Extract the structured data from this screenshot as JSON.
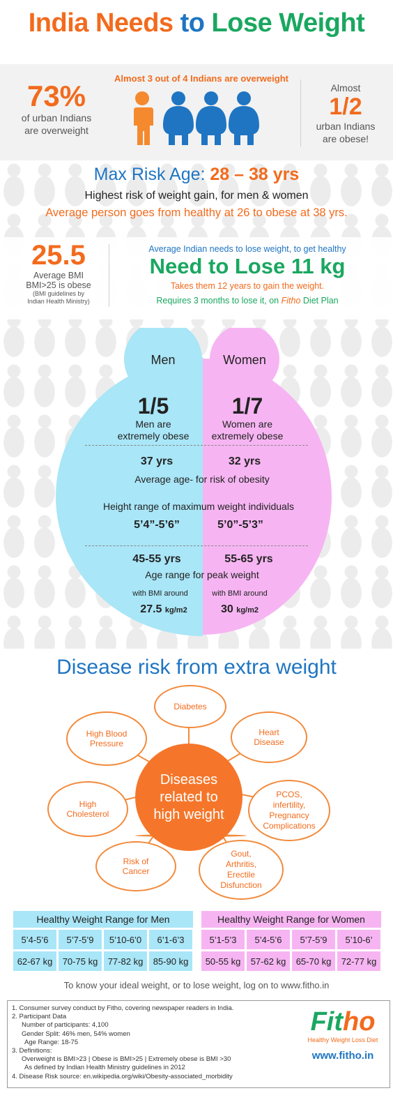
{
  "title": {
    "part1": "India Needs",
    "part2": "to",
    "part3": "Lose Weight"
  },
  "stat_top": {
    "pct": "73%",
    "pct_text1": "of  urban Indians",
    "pct_text2": "are  overweight",
    "headline": "Almost 3 out of 4 Indians are overweight",
    "right_pre": "Almost",
    "right_frac": "1/2",
    "right_text1": "urban Indians",
    "right_text2": "are  obese!"
  },
  "risk": {
    "label": "Max Risk Age:",
    "value": "28 – 38 yrs",
    "line1": "Highest risk of weight gain, for men & women",
    "line2": "Average person goes from healthy at 26 to obese at 38 yrs."
  },
  "bmi": {
    "value": "25.5",
    "text1": "Average BMI",
    "text2": "BMI>25 is obese",
    "note1": "(BMI guidelines by",
    "note2": "Indian Health Ministry)"
  },
  "lose": {
    "intro": "Average Indian needs to lose weight, to get healthy",
    "headline": "Need to Lose 11 kg",
    "gain": "Takes them 12 years to gain the weight.",
    "req_pre": "Requires 3 months to lose it, on",
    "req_brand": "Fitho",
    "req_post": "Diet Plan"
  },
  "compare": {
    "men_label": "Men",
    "women_label": "Women",
    "men_frac": "1/5",
    "men_frac_text1": "Men are",
    "men_frac_text2": "extremely obese",
    "women_frac": "1/7",
    "women_frac_text1": "Women are",
    "women_frac_text2": "extremely obese",
    "men_age": "37 yrs",
    "women_age": "32 yrs",
    "age_caption": "Average age- for risk of obesity",
    "height_caption": "Height range of maximum weight individuals",
    "men_height": "5’4”-5’6”",
    "women_height": "5’0”-5’3”",
    "men_peak": "45-55 yrs",
    "women_peak": "55-65 yrs",
    "peak_caption": "Age range for peak weight",
    "bmi_around": "with BMI around",
    "men_bmi": "27.5",
    "women_bmi": "30",
    "bmi_unit": "kg/m2"
  },
  "disease": {
    "title": "Disease risk from extra weight",
    "center": [
      "Diseases",
      "related to",
      "high weight"
    ],
    "items": [
      [
        "Diabetes"
      ],
      [
        "Heart",
        "Disease"
      ],
      [
        "PCOS,",
        "infertility,",
        "Pregnancy",
        "Complications"
      ],
      [
        "Gout,",
        "Arthritis,",
        "Erectile",
        "Disfunction"
      ],
      [
        "Risk of",
        "Cancer"
      ],
      [
        "High",
        "Cholesterol"
      ],
      [
        "High Blood",
        "Pressure"
      ]
    ]
  },
  "weights": {
    "men_title": "Healthy Weight Range for Men",
    "men_heights": [
      "5’4-5’6",
      "5’7-5’9",
      "5’10-6’0",
      "6’1-6’3"
    ],
    "men_kg": [
      "62-67 kg",
      "70-75 kg",
      "77-82 kg",
      "85-90 kg"
    ],
    "women_title": "Healthy Weight Range for Women",
    "women_heights": [
      "5’1-5’3",
      "5’4-5’6",
      "5’7-5’9",
      "5’10-6’"
    ],
    "women_kg": [
      "50-55 kg",
      "57-62 kg",
      "65-70 kg",
      "72-77 kg"
    ],
    "footer": "To know your ideal weight, or to lose weight, log on to www.fitho.in"
  },
  "notes": [
    "1. Consumer survey conduct by Fitho, covering newspaper readers in India.",
    "2. Participant Data",
    "    Number of participants: 4,100",
    "    Gender Split: 46% men, 54% women",
    "     Age Range: 18-75",
    "3. Definitions:",
    "    Overweight is BMI>23 | Obese is BMI>25 | Extremely obese is BMI >30",
    "     As defined by Indian Health Ministry guidelines in 2012",
    "4. Disease Risk source: en.wikipedia.org/wiki/Obesity-associated_morbidity"
  ],
  "brand": {
    "name_a": "Fit",
    "name_b": "ho",
    "tagline": "Healthy Weight Loss Diet",
    "url": "www.fitho.in"
  },
  "colors": {
    "orange": "#f26b1d",
    "blue": "#1f75c2",
    "green": "#1aa760",
    "men": "#a9e6f7",
    "women": "#f6b5f2"
  }
}
